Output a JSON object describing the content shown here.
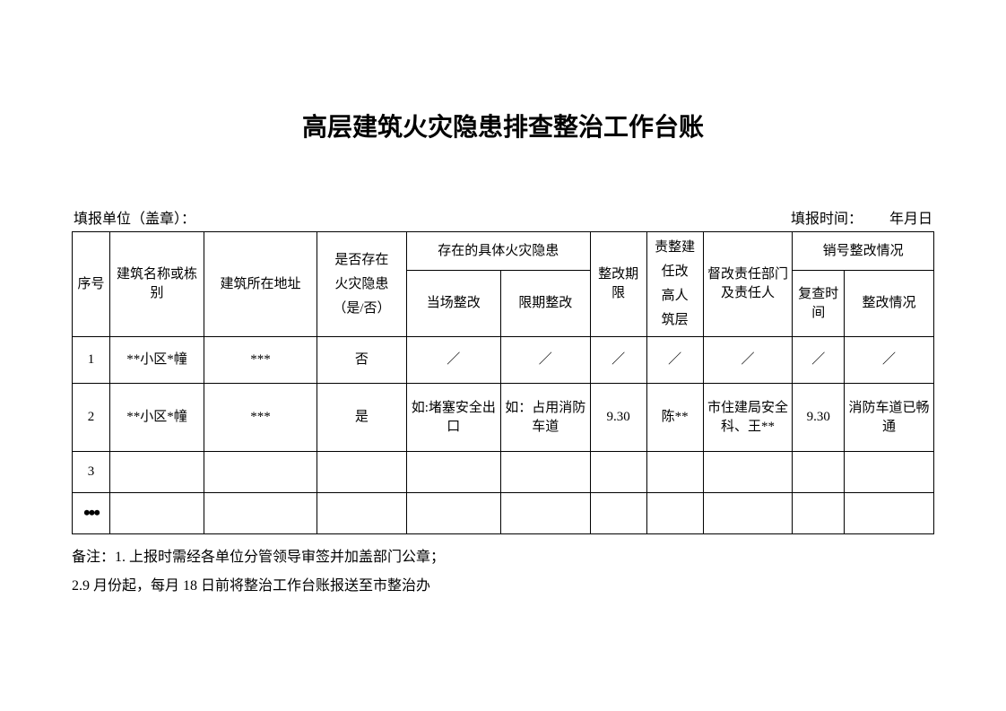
{
  "title": "高层建筑火灾隐患排查整治工作台账",
  "meta": {
    "unit_label": "填报单位（盖章）：",
    "time_label": "填报时间：",
    "time_value": "年月日"
  },
  "headers": {
    "seq": "序号",
    "name": "建筑名称或栋别",
    "addr": "建筑所在地址",
    "has_hazard": "是否存在",
    "has_hazard2": "火灾隐患",
    "has_hazard3": "（是/否）",
    "hazard_group": "存在的具体火灾隐患",
    "spot_fix": "当场整改",
    "deadline_fix": "限期整改",
    "period": "整改期限",
    "person": "责整建",
    "person2": "任改",
    "person3": "高人",
    "person4": "筑层",
    "dept": "督改责任部门及责任人",
    "cancel_group": "销号整改情况",
    "review_time": "复查时间",
    "status": "整改情况"
  },
  "rows": [
    {
      "seq": "1",
      "name": "**小区*幢",
      "addr": "***",
      "has": "否",
      "spot": "／",
      "deadline": "／",
      "period": "／",
      "person": "／",
      "dept": "／",
      "review": "／",
      "status": "／"
    },
    {
      "seq": "2",
      "name": "**小区*幢",
      "addr": "***",
      "has": "是",
      "spot": "如:堵塞安全出口",
      "deadline": "如：占用消防车道",
      "period": "9.30",
      "person": "陈**",
      "dept": "市住建局安全科、王**",
      "review": "9.30",
      "status": "消防车道已畅通"
    },
    {
      "seq": "3",
      "name": "",
      "addr": "",
      "has": "",
      "spot": "",
      "deadline": "",
      "period": "",
      "person": "",
      "dept": "",
      "review": "",
      "status": ""
    }
  ],
  "ellipsis": "•••",
  "notes": {
    "line1": "备注：1. 上报时需经各单位分管领导审签并加盖部门公章；",
    "line2": "2.9 月份起，每月 18 日前将整治工作台账报送至市整治办"
  },
  "table_style": {
    "border_color": "#000000",
    "background_color": "#ffffff",
    "font_size_header": 15,
    "font_size_cell": 15,
    "font_size_title": 28
  }
}
